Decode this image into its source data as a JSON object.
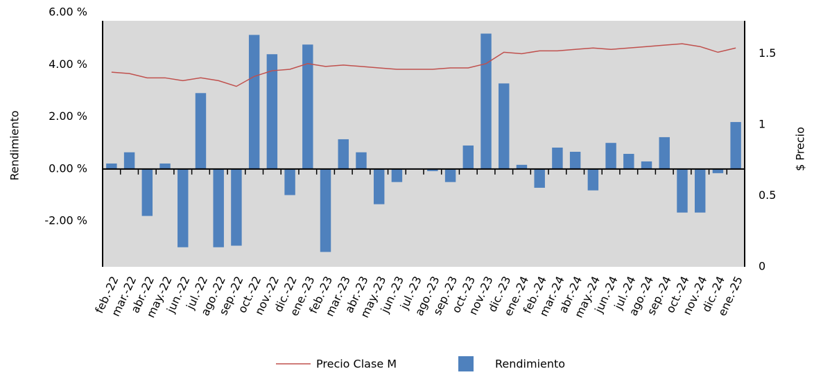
{
  "chart_data": {
    "type": "bar",
    "categories": [
      "feb.-22",
      "mar.-22",
      "abr.-22",
      "may.-22",
      "jun.-22",
      "jul.-22",
      "ago.-22",
      "sep.-22",
      "oct.-22",
      "nov.-22",
      "dic.-22",
      "ene.-23",
      "feb.-23",
      "mar.-23",
      "abr.-23",
      "may.-23",
      "jun.-23",
      "jul.-23",
      "ago.-23",
      "sep.-23",
      "oct.-23",
      "nov.-23",
      "dic.-23",
      "ene.-24",
      "feb.-24",
      "mar.-24",
      "abr.-24",
      "may.-24",
      "jun.-24",
      "jul.-24",
      "ago.-24",
      "sep.-24",
      "oct.-24",
      "nov.-24",
      "dic.-24",
      "ene.-25"
    ],
    "series": [
      {
        "name": "Precio Clase M",
        "type": "line",
        "axis": "y2",
        "color": "#c0504d",
        "values": [
          1.37,
          1.36,
          1.33,
          1.33,
          1.31,
          1.33,
          1.31,
          1.27,
          1.34,
          1.38,
          1.39,
          1.43,
          1.41,
          1.42,
          1.41,
          1.4,
          1.39,
          1.39,
          1.39,
          1.4,
          1.4,
          1.43,
          1.51,
          1.5,
          1.52,
          1.52,
          1.53,
          1.54,
          1.53,
          1.54,
          1.55,
          1.56,
          1.57,
          1.55,
          1.51,
          1.54
        ]
      },
      {
        "name": "Rendimiento",
        "type": "bar",
        "color": "#4f81bd",
        "values": [
          0.21,
          0.64,
          -1.8,
          0.21,
          -3.0,
          2.91,
          -3.0,
          -2.94,
          5.14,
          4.4,
          -1.0,
          4.77,
          -3.18,
          1.14,
          0.64,
          -1.35,
          -0.5,
          -0.02,
          -0.08,
          -0.5,
          0.9,
          5.19,
          3.28,
          0.16,
          -0.72,
          0.82,
          0.66,
          -0.82,
          1.0,
          0.58,
          0.29,
          1.22,
          -1.67,
          -1.67,
          -0.16,
          1.8
        ]
      }
    ],
    "y_label": "Rendimiento",
    "y2_label": "$ Precio",
    "ylim": [
      -3.75,
      6
    ],
    "yticks": [
      {
        "value": -2,
        "label": "-2.00 %"
      },
      {
        "value": 0,
        "label": "0.00 %"
      },
      {
        "value": 2,
        "label": "2.00 %"
      },
      {
        "value": 4,
        "label": "4.00 %"
      },
      {
        "value": 6,
        "label": "6.00 %"
      }
    ],
    "y2lim": [
      0,
      1.79
    ],
    "y2ticks": [
      0,
      0.5,
      1,
      1.5
    ],
    "background": "#d9d9d9",
    "legend": "bottom"
  }
}
